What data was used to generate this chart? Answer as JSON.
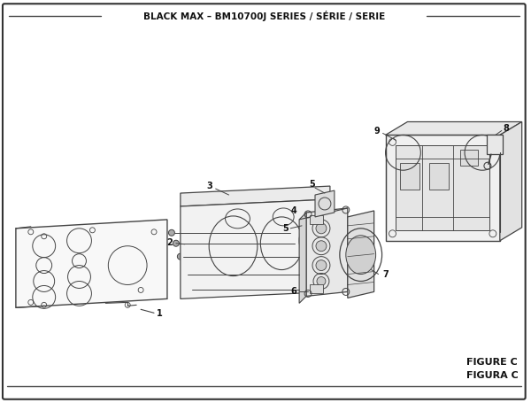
{
  "title": "BLACK MAX – BM10700J SERIES / SÉRIE / SERIE",
  "figure_label": "FIGURE C",
  "figura_label": "FIGURA C",
  "bg_color": "#ffffff",
  "line_color": "#444444",
  "text_color": "#111111",
  "figsize": [
    6.0,
    4.55
  ],
  "dpi": 100
}
